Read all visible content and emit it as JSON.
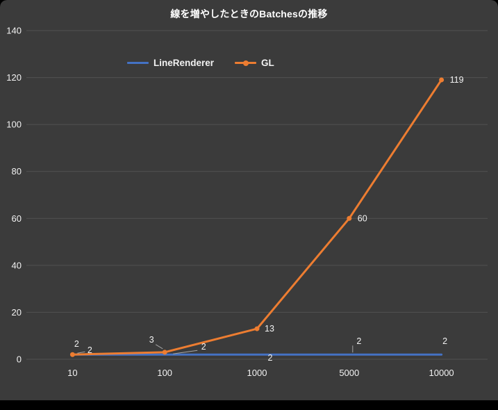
{
  "chart": {
    "background": "#3b3b3b",
    "gridline_color": "#525252",
    "text_color": "#f2f2f2",
    "leader_line_color": "#a6a6a6",
    "bottom_bar_color": "#000000"
  },
  "chart_data": {
    "type": "line",
    "title": "線を増やしたときのBatchesの推移",
    "categories": [
      "10",
      "100",
      "1000",
      "5000",
      "10000"
    ],
    "series": [
      {
        "name": "LineRenderer",
        "color": "#4472c4",
        "markers": false,
        "values": [
          2,
          2,
          2,
          2,
          2
        ]
      },
      {
        "name": "GL",
        "color": "#ed7d31",
        "markers": true,
        "values": [
          2,
          3,
          13,
          60,
          119
        ]
      }
    ],
    "ylim": [
      0,
      140
    ],
    "y_ticks": [
      0,
      20,
      40,
      60,
      80,
      100,
      120,
      140
    ],
    "xlabel": "",
    "ylabel": "",
    "grid": true,
    "legend_position": "top",
    "data_labels": true
  }
}
